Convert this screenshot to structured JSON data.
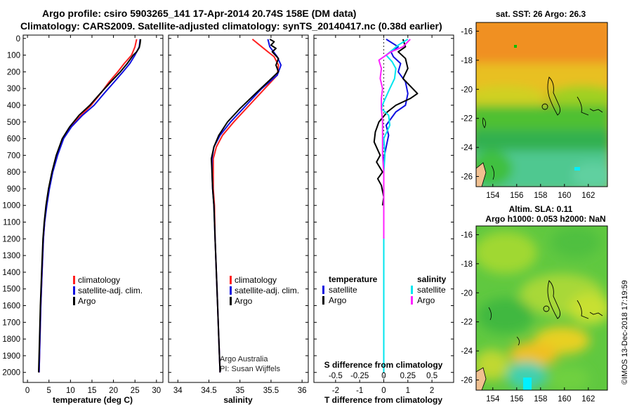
{
  "title": {
    "line1": "Argo profile: csiro 5903265_141 17-Apr-2014 20.74S 158E (DM data)",
    "line2": "Climatology: CARS2009. Satellite-adjusted climatology: synTS_20140417.nc (0.38d earlier)"
  },
  "colors": {
    "climatology": "#ff2020",
    "satellite": "#1010e0",
    "argo": "#000000",
    "sat_diff": "#00e5ee",
    "argo_diff": "#ff20ff"
  },
  "depth_axis": {
    "ticks": [
      0,
      100,
      200,
      300,
      400,
      500,
      600,
      700,
      800,
      900,
      1000,
      1100,
      1200,
      1300,
      1400,
      1500,
      1600,
      1700,
      1800,
      1900,
      2000
    ]
  },
  "legends": {
    "temperature": {
      "items": [
        "climatology",
        "satellite-adj. clim.",
        "Argo"
      ]
    },
    "salinity": {
      "items": [
        "climatology",
        "satellite-adj. clim.",
        "Argo"
      ]
    },
    "difference": {
      "temperature_header": "temperature",
      "salinity_header": "salinity",
      "t_items": [
        "satellite",
        "Argo"
      ],
      "s_items": [
        "satellite",
        "Argo"
      ]
    }
  },
  "credit": {
    "line1": "Argo Australia",
    "line2": "PI: Susan Wijffels"
  },
  "map_top": {
    "title": "sat. SST: 26 Argo: 26.3",
    "lat_ticks": [
      "-16",
      "-18",
      "-20",
      "-22",
      "-24",
      "-26"
    ],
    "lon_ticks": [
      "154",
      "156",
      "158",
      "160",
      "162"
    ]
  },
  "map_bottom": {
    "title_line1": "Altim. SLA: 0.11",
    "title_line2": "Argo h1000: 0.053 h2000: NaN",
    "lat_ticks": [
      "-16",
      "-18",
      "-20",
      "-22",
      "-24",
      "-26"
    ],
    "lon_ticks": [
      "154",
      "156",
      "158",
      "160",
      "162"
    ]
  },
  "side_note": "©IMOS 13-Dec-2018 17:19:59",
  "chart_data": [
    {
      "type": "line",
      "name": "temperature",
      "xlabel": "temperature (deg C)",
      "ylabel": "depth",
      "xlim": [
        -1,
        31.5
      ],
      "ylim": [
        2060,
        -20
      ],
      "xticks": [
        0,
        5,
        10,
        15,
        20,
        25,
        30
      ],
      "series": [
        {
          "name": "climatology",
          "color": "#ff2020",
          "points": [
            [
              25.4,
              5
            ],
            [
              25.0,
              50
            ],
            [
              24.2,
              100
            ],
            [
              22.5,
              150
            ],
            [
              21.0,
              200
            ],
            [
              19.0,
              260
            ],
            [
              17.0,
              330
            ],
            [
              14.8,
              400
            ],
            [
              12.5,
              460
            ],
            [
              10.0,
              530
            ],
            [
              8.2,
              600
            ],
            [
              6.8,
              700
            ],
            [
              5.8,
              800
            ],
            [
              5.0,
              900
            ],
            [
              4.4,
              1000
            ],
            [
              4.0,
              1100
            ],
            [
              3.7,
              1200
            ],
            [
              3.4,
              1400
            ],
            [
              3.1,
              1600
            ],
            [
              2.9,
              1800
            ],
            [
              2.7,
              2000
            ]
          ]
        },
        {
          "name": "satellite-adj. clim.",
          "color": "#1010e0",
          "points": [
            [
              26.2,
              5
            ],
            [
              26.0,
              50
            ],
            [
              25.0,
              100
            ],
            [
              23.8,
              150
            ],
            [
              22.2,
              200
            ],
            [
              20.2,
              260
            ],
            [
              17.8,
              330
            ],
            [
              15.5,
              400
            ],
            [
              12.8,
              460
            ],
            [
              10.2,
              530
            ],
            [
              8.4,
              600
            ],
            [
              7.0,
              700
            ],
            [
              5.9,
              800
            ],
            [
              5.1,
              900
            ],
            [
              4.5,
              1000
            ],
            [
              4.0,
              1100
            ],
            [
              3.7,
              1200
            ],
            [
              3.4,
              1400
            ],
            [
              3.1,
              1600
            ],
            [
              2.9,
              1800
            ],
            [
              2.7,
              2000
            ]
          ]
        },
        {
          "name": "Argo",
          "color": "#000000",
          "points": [
            [
              26.3,
              5
            ],
            [
              26.2,
              30
            ],
            [
              26.0,
              55
            ],
            [
              25.4,
              80
            ],
            [
              24.6,
              100
            ],
            [
              23.2,
              150
            ],
            [
              21.6,
              200
            ],
            [
              19.4,
              260
            ],
            [
              16.9,
              330
            ],
            [
              14.5,
              400
            ],
            [
              12.0,
              460
            ],
            [
              9.8,
              530
            ],
            [
              8.1,
              600
            ],
            [
              6.7,
              700
            ],
            [
              5.7,
              800
            ],
            [
              4.9,
              900
            ],
            [
              4.3,
              1000
            ],
            [
              3.9,
              1100
            ],
            [
              3.6,
              1200
            ],
            [
              3.3,
              1400
            ],
            [
              3.0,
              1600
            ],
            [
              2.8,
              1800
            ],
            [
              2.6,
              2000
            ]
          ]
        }
      ]
    },
    {
      "type": "line",
      "name": "salinity",
      "xlabel": "salinity",
      "xlim": [
        33.85,
        36.1
      ],
      "ylim": [
        2060,
        -20
      ],
      "xticks": [
        34,
        34.5,
        35,
        35.5,
        36
      ],
      "series": [
        {
          "name": "climatology",
          "color": "#ff2020",
          "points": [
            [
              35.2,
              5
            ],
            [
              35.35,
              50
            ],
            [
              35.55,
              110
            ],
            [
              35.62,
              160
            ],
            [
              35.6,
              220
            ],
            [
              35.4,
              300
            ],
            [
              35.15,
              400
            ],
            [
              34.9,
              500
            ],
            [
              34.72,
              580
            ],
            [
              34.62,
              650
            ],
            [
              34.57,
              720
            ],
            [
              34.57,
              800
            ],
            [
              34.57,
              900
            ],
            [
              34.59,
              1000
            ],
            [
              34.6,
              1200
            ],
            [
              34.62,
              1400
            ],
            [
              34.64,
              1600
            ],
            [
              34.66,
              1800
            ],
            [
              34.68,
              2000
            ]
          ]
        },
        {
          "name": "satellite-adj. clim.",
          "color": "#1010e0",
          "points": [
            [
              35.45,
              5
            ],
            [
              35.48,
              50
            ],
            [
              35.6,
              110
            ],
            [
              35.66,
              160
            ],
            [
              35.6,
              220
            ],
            [
              35.35,
              300
            ],
            [
              35.1,
              400
            ],
            [
              34.85,
              500
            ],
            [
              34.68,
              580
            ],
            [
              34.58,
              650
            ],
            [
              34.55,
              720
            ],
            [
              34.55,
              800
            ],
            [
              34.56,
              900
            ],
            [
              34.58,
              1000
            ],
            [
              34.6,
              1200
            ],
            [
              34.62,
              1400
            ],
            [
              34.64,
              1600
            ],
            [
              34.66,
              1800
            ],
            [
              34.68,
              2000
            ]
          ]
        },
        {
          "name": "Argo",
          "color": "#000000",
          "points": [
            [
              35.48,
              5
            ],
            [
              35.55,
              20
            ],
            [
              35.5,
              40
            ],
            [
              35.58,
              60
            ],
            [
              35.52,
              80
            ],
            [
              35.62,
              120
            ],
            [
              35.58,
              160
            ],
            [
              35.62,
              200
            ],
            [
              35.45,
              260
            ],
            [
              35.25,
              330
            ],
            [
              35.0,
              420
            ],
            [
              34.8,
              500
            ],
            [
              34.66,
              580
            ],
            [
              34.58,
              650
            ],
            [
              34.54,
              720
            ],
            [
              34.55,
              800
            ],
            [
              34.56,
              900
            ],
            [
              34.58,
              1000
            ],
            [
              34.6,
              1200
            ],
            [
              34.62,
              1400
            ],
            [
              34.64,
              1600
            ],
            [
              34.66,
              1800
            ],
            [
              34.68,
              2000
            ]
          ]
        }
      ]
    },
    {
      "type": "line",
      "name": "difference",
      "xlabel": "T difference from climatology",
      "x2label": "S difference from climatology",
      "xlim": [
        -2.9,
        2.9
      ],
      "ylim": [
        2060,
        -20
      ],
      "xticks": [
        -2,
        -1,
        0,
        1,
        2
      ],
      "x2ticks": [
        "-0.5",
        "-0.25",
        "0",
        "0.25",
        "0.5"
      ],
      "s_scale_factor": 4,
      "series": [
        {
          "name": "T satellite",
          "color": "#1010e0",
          "points": [
            [
              0.1,
              5
            ],
            [
              0.6,
              50
            ],
            [
              0.3,
              80
            ],
            [
              0.4,
              110
            ],
            [
              0.7,
              150
            ],
            [
              0.6,
              200
            ],
            [
              0.9,
              260
            ],
            [
              1.0,
              330
            ],
            [
              0.9,
              400
            ],
            [
              0.5,
              440
            ],
            [
              0.3,
              480
            ],
            [
              0.1,
              520
            ],
            [
              0.2,
              580
            ],
            [
              0.1,
              650
            ],
            [
              0.0,
              720
            ],
            [
              0.0,
              800
            ],
            [
              0.0,
              900
            ],
            [
              0.0,
              1000
            ]
          ]
        },
        {
          "name": "T Argo",
          "color": "#000000",
          "points": [
            [
              0.8,
              5
            ],
            [
              0.9,
              50
            ],
            [
              0.6,
              80
            ],
            [
              0.9,
              120
            ],
            [
              1.0,
              180
            ],
            [
              0.8,
              240
            ],
            [
              1.4,
              330
            ],
            [
              1.1,
              360
            ],
            [
              0.5,
              400
            ],
            [
              0.15,
              440
            ],
            [
              -0.2,
              500
            ],
            [
              -0.35,
              560
            ],
            [
              -0.4,
              620
            ],
            [
              -0.15,
              700
            ],
            [
              -0.3,
              740
            ],
            [
              -0.05,
              800
            ],
            [
              -0.25,
              840
            ],
            [
              -0.1,
              880
            ],
            [
              0.0,
              950
            ],
            [
              -0.05,
              1000
            ]
          ]
        },
        {
          "name": "S satellite",
          "color": "#00e5ee",
          "points": [
            [
              1.0,
              5
            ],
            [
              0.6,
              40
            ],
            [
              0.1,
              100
            ],
            [
              0.35,
              140
            ],
            [
              0.5,
              180
            ],
            [
              0.45,
              240
            ],
            [
              0.25,
              300
            ],
            [
              0.0,
              380
            ],
            [
              -0.1,
              420
            ],
            [
              0.2,
              460
            ],
            [
              0.25,
              520
            ],
            [
              0.0,
              600
            ],
            [
              0.05,
              700
            ],
            [
              0.0,
              800
            ],
            [
              0.0,
              900
            ],
            [
              0.0,
              1000
            ],
            [
              0.0,
              1200
            ],
            [
              0.0,
              1400
            ],
            [
              0.0,
              1600
            ],
            [
              0.0,
              1800
            ],
            [
              0.0,
              2000
            ]
          ]
        },
        {
          "name": "S Argo",
          "color": "#ff20ff",
          "points": [
            [
              1.1,
              5
            ],
            [
              0.8,
              50
            ],
            [
              0.3,
              80
            ],
            [
              0.1,
              100
            ],
            [
              -0.2,
              130
            ],
            [
              -0.1,
              180
            ],
            [
              -0.15,
              240
            ],
            [
              -0.05,
              300
            ],
            [
              -0.1,
              360
            ],
            [
              -0.1,
              420
            ],
            [
              -0.05,
              500
            ],
            [
              -0.05,
              600
            ],
            [
              -0.05,
              700
            ],
            [
              0.0,
              800
            ],
            [
              0.0,
              900
            ],
            [
              0.0,
              1000
            ],
            [
              0.0,
              1100
            ],
            [
              0.0,
              1200
            ]
          ]
        }
      ]
    }
  ]
}
